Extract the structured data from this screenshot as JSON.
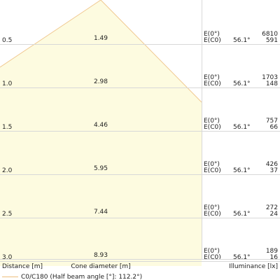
{
  "chart_data": {
    "type": "area",
    "xlabel": "Distance [m]",
    "center_label": "Cone diameter [m]",
    "ylabel": "Illuminance [lx]",
    "legend": "C0/C180 (Half beam angle [°]: 112.2°)",
    "colors": {
      "fill": "#fdfbe0",
      "edge": "#f0c890",
      "grid": "#d8d8d8"
    },
    "rows": [
      {
        "distance": "0.5",
        "diameter": "1.49",
        "e0_label": "E(0°)",
        "ec0_label": "E(C0)",
        "angle": "56.1°",
        "e0": "6810",
        "ec0": "591"
      },
      {
        "distance": "1.0",
        "diameter": "2.98",
        "e0_label": "E(0°)",
        "ec0_label": "E(C0)",
        "angle": "56.1°",
        "e0": "1703",
        "ec0": "148"
      },
      {
        "distance": "1.5",
        "diameter": "4.46",
        "e0_label": "E(0°)",
        "ec0_label": "E(C0)",
        "angle": "56.1°",
        "e0": "757",
        "ec0": "66"
      },
      {
        "distance": "2.0",
        "diameter": "5.95",
        "e0_label": "E(0°)",
        "ec0_label": "E(C0)",
        "angle": "56.1°",
        "e0": "426",
        "ec0": "37"
      },
      {
        "distance": "2.5",
        "diameter": "7.44",
        "e0_label": "E(0°)",
        "ec0_label": "E(C0)",
        "angle": "56.1°",
        "e0": "272",
        "ec0": "24"
      },
      {
        "distance": "3.0",
        "diameter": "8.93",
        "e0_label": "E(0°)",
        "ec0_label": "E(C0)",
        "angle": "56.1°",
        "e0": "189",
        "ec0": "16"
      }
    ]
  }
}
